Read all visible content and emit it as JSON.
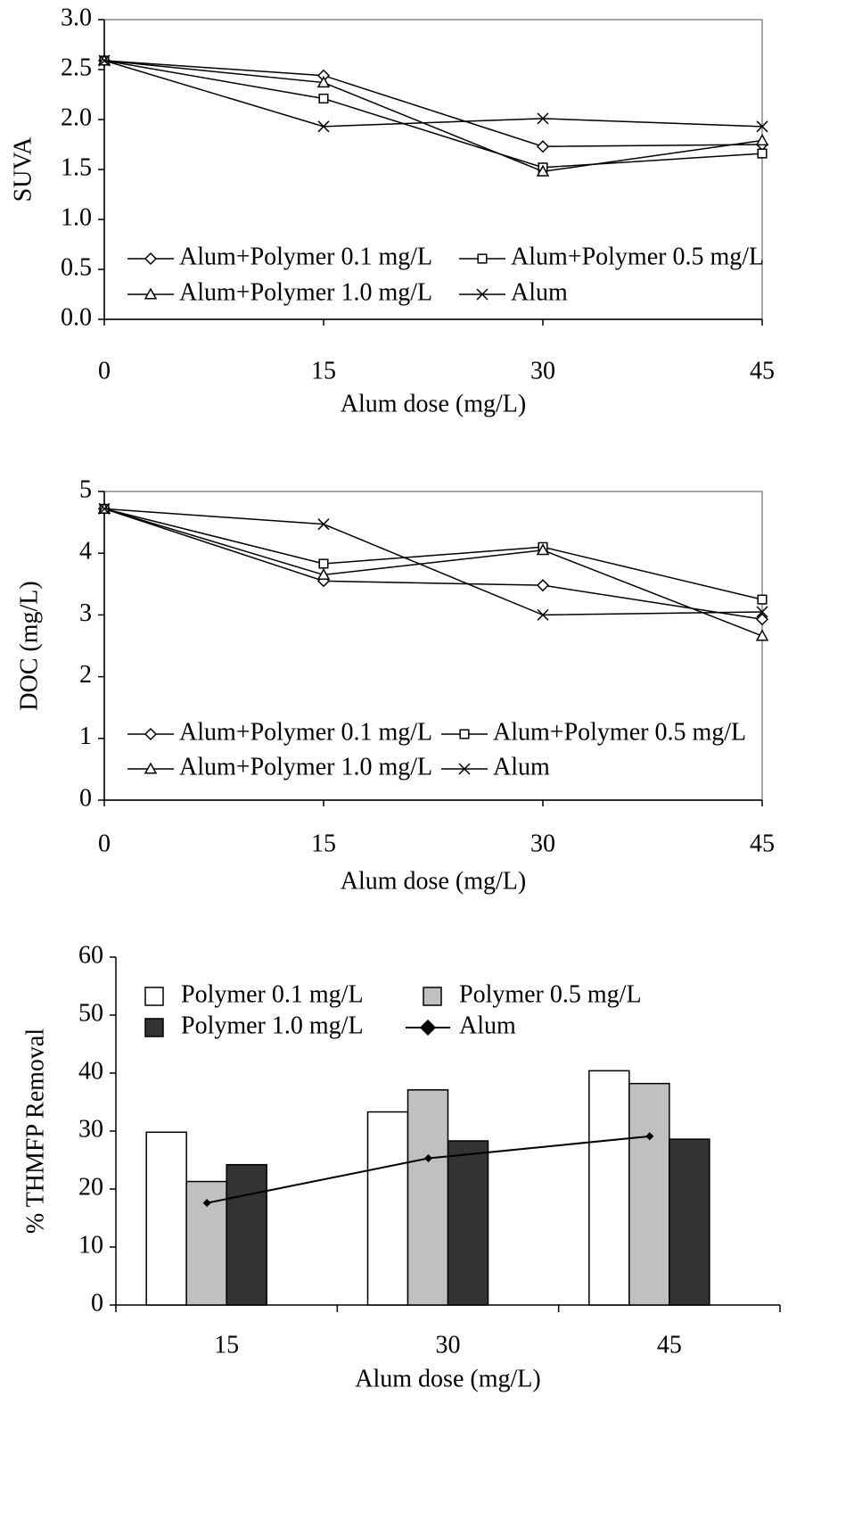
{
  "chart_data": [
    {
      "type": "line",
      "y_label": "SUVA",
      "x_label": "Alum dose (mg/L)",
      "x": [
        0,
        15,
        30,
        45
      ],
      "xlim": [
        0,
        45
      ],
      "xticks": [
        0,
        15,
        30,
        45
      ],
      "ylim": [
        0,
        3
      ],
      "yticks": [
        {
          "value": 0,
          "label": "0.0"
        },
        0.5,
        {
          "value": 1,
          "label": "1.0"
        },
        1.5,
        {
          "value": 2,
          "label": "2.0"
        },
        2.5,
        {
          "value": 3,
          "label": "3.0"
        }
      ],
      "series": [
        {
          "name": "Alum+Polymer 0.1 mg/L",
          "marker": "diamond",
          "color": "#000000",
          "values": [
            2.59,
            2.44,
            1.73,
            1.75
          ]
        },
        {
          "name": "Alum+Polymer 0.5 mg/L",
          "marker": "square",
          "color": "#000000",
          "values": [
            2.59,
            2.21,
            1.52,
            1.66
          ]
        },
        {
          "name": "Alum+Polymer 1.0 mg/L",
          "marker": "triangle",
          "color": "#000000",
          "values": [
            2.59,
            2.37,
            1.48,
            1.79
          ]
        },
        {
          "name": "Alum",
          "marker": "x",
          "color": "#000000",
          "values": [
            2.59,
            1.93,
            2.01,
            1.93
          ]
        }
      ]
    },
    {
      "type": "line",
      "y_label": "DOC (mg/L)",
      "x_label": "Alum dose (mg/L)",
      "x": [
        0,
        15,
        30,
        45
      ],
      "xlim": [
        0,
        45
      ],
      "xticks": [
        0,
        15,
        30,
        45
      ],
      "ylim": [
        0,
        5
      ],
      "yticks": [
        0,
        1,
        2,
        3,
        4,
        5
      ],
      "series": [
        {
          "name": "Alum+Polymer 0.1 mg/L",
          "marker": "diamond",
          "color": "#000000",
          "values": [
            4.72,
            3.55,
            3.48,
            2.93
          ]
        },
        {
          "name": "Alum+Polymer 0.5 mg/L",
          "marker": "square",
          "color": "#000000",
          "values": [
            4.72,
            3.83,
            4.1,
            3.25
          ]
        },
        {
          "name": "Alum+Polymer 1.0 mg/L",
          "marker": "triangle",
          "color": "#000000",
          "values": [
            4.72,
            3.65,
            4.05,
            2.66
          ]
        },
        {
          "name": "Alum",
          "marker": "x",
          "color": "#000000",
          "values": [
            4.72,
            4.47,
            3.0,
            3.05
          ]
        }
      ]
    },
    {
      "type": "bar",
      "y_label": "% THMFP Removal",
      "x_label": "Alum dose (mg/L)",
      "categories": [
        "15",
        "30",
        "45"
      ],
      "ylim": [
        0,
        60
      ],
      "yticks": [
        0,
        10,
        20,
        30,
        40,
        50,
        60
      ],
      "series": [
        {
          "name": "Polymer 0.1 mg/L",
          "color": "#ffffff",
          "values": [
            29.8,
            33.3,
            40.4
          ]
        },
        {
          "name": "Polymer 0.5 mg/L",
          "color": "#c0c0c0",
          "values": [
            21.3,
            37.1,
            38.2
          ]
        },
        {
          "name": "Polymer 1.0 mg/L",
          "color": "#333333",
          "values": [
            24.2,
            28.3,
            28.6
          ]
        },
        {
          "name": "Alum",
          "color": "#000000",
          "type": "line",
          "values": [
            17.6,
            25.3,
            29.1
          ]
        }
      ]
    }
  ]
}
